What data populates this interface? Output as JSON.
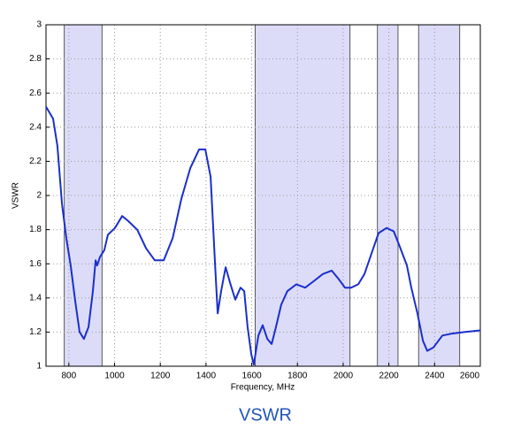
{
  "chart_data": {
    "type": "line",
    "title": "VSWR",
    "x_label": "Frequency, MHz",
    "y_label": "VSWR",
    "xlim": [
      700,
      2600
    ],
    "xticks": [
      800,
      1000,
      1200,
      1400,
      1600,
      1800,
      2000,
      2200,
      2400,
      2600
    ],
    "ylim": [
      1,
      3
    ],
    "yticks": [
      1,
      1.2,
      1.4,
      1.6,
      1.8,
      2,
      2.2,
      2.4,
      2.6,
      2.8,
      3
    ],
    "grid": true,
    "shaded_bands": [
      [
        780,
        945
      ],
      [
        1615,
        2030
      ],
      [
        2150,
        2240
      ],
      [
        2330,
        2510
      ]
    ],
    "band_color": "#dcdcf8",
    "series": [
      {
        "name": "VSWR",
        "color": "#1a2fcc",
        "x": [
          700,
          731,
          750,
          770,
          789,
          808,
          828,
          847,
          866,
          886,
          905,
          917,
          924,
          936,
          955,
          971,
          1002,
          1033,
          1060,
          1099,
          1138,
          1176,
          1215,
          1254,
          1292,
          1331,
          1370,
          1397,
          1420,
          1440,
          1451,
          1466,
          1486,
          1505,
          1528,
          1551,
          1567,
          1582,
          1598,
          1609,
          1629,
          1648,
          1668,
          1687,
          1706,
          1729,
          1756,
          1795,
          1834,
          1873,
          1911,
          1950,
          1981,
          2008,
          2035,
          2066,
          2093,
          2124,
          2155,
          2190,
          2221,
          2248,
          2279,
          2298,
          2325,
          2349,
          2368,
          2395,
          2434,
          2472,
          2530,
          2600
        ],
        "values": [
          2.52,
          2.45,
          2.29,
          1.95,
          1.75,
          1.59,
          1.38,
          1.2,
          1.16,
          1.23,
          1.44,
          1.62,
          1.59,
          1.64,
          1.68,
          1.77,
          1.81,
          1.88,
          1.85,
          1.8,
          1.69,
          1.62,
          1.62,
          1.75,
          1.98,
          2.16,
          2.27,
          2.27,
          2.11,
          1.59,
          1.31,
          1.44,
          1.58,
          1.49,
          1.39,
          1.46,
          1.44,
          1.23,
          1.07,
          1.01,
          1.18,
          1.24,
          1.16,
          1.13,
          1.23,
          1.36,
          1.44,
          1.48,
          1.46,
          1.5,
          1.54,
          1.56,
          1.51,
          1.46,
          1.46,
          1.48,
          1.54,
          1.66,
          1.78,
          1.81,
          1.79,
          1.7,
          1.59,
          1.46,
          1.31,
          1.15,
          1.09,
          1.11,
          1.18,
          1.19,
          1.2,
          1.21
        ]
      }
    ]
  }
}
